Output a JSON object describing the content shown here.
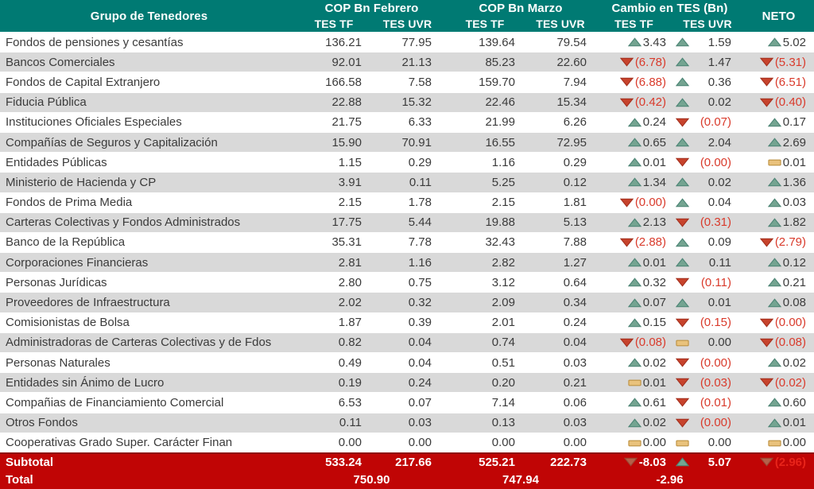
{
  "colors": {
    "header_bg": "#007a73",
    "total_bg": "#c00505",
    "stripe": "#d9d9d9",
    "negative": "#d93a2b",
    "up_fill": "#74a491",
    "down_fill": "#c7432c",
    "flat_fill": "#e9c27c"
  },
  "chart_data": {
    "type": "table",
    "header": {
      "group_col": "Grupo de Tenedores",
      "feb_group": "COP Bn Febrero",
      "mar_group": "COP Bn Marzo",
      "cambio_group": "Cambio en TES (Bn)",
      "neto": "NETO",
      "sub_tf": "TES TF",
      "sub_uvr": "TES UVR"
    },
    "rows": [
      {
        "name": "Fondos de pensiones y cesantías",
        "feb_tf": "136.21",
        "feb_uvr": "77.95",
        "mar_tf": "139.64",
        "mar_uvr": "79.54",
        "chg_tf": {
          "dir": "up",
          "val": "3.43"
        },
        "chg_uvr": {
          "dir": "up",
          "val": "1.59"
        },
        "neto": {
          "dir": "up",
          "val": "5.02"
        }
      },
      {
        "name": "Bancos Comerciales",
        "feb_tf": "92.01",
        "feb_uvr": "21.13",
        "mar_tf": "85.23",
        "mar_uvr": "22.60",
        "chg_tf": {
          "dir": "down",
          "val": "(6.78)"
        },
        "chg_uvr": {
          "dir": "up",
          "val": "1.47"
        },
        "neto": {
          "dir": "down",
          "val": "(5.31)"
        }
      },
      {
        "name": "Fondos de Capital Extranjero",
        "feb_tf": "166.58",
        "feb_uvr": "7.58",
        "mar_tf": "159.70",
        "mar_uvr": "7.94",
        "chg_tf": {
          "dir": "down",
          "val": "(6.88)"
        },
        "chg_uvr": {
          "dir": "up",
          "val": "0.36"
        },
        "neto": {
          "dir": "down",
          "val": "(6.51)"
        }
      },
      {
        "name": "Fiducia Pública",
        "feb_tf": "22.88",
        "feb_uvr": "15.32",
        "mar_tf": "22.46",
        "mar_uvr": "15.34",
        "chg_tf": {
          "dir": "down",
          "val": "(0.42)"
        },
        "chg_uvr": {
          "dir": "up",
          "val": "0.02"
        },
        "neto": {
          "dir": "down",
          "val": "(0.40)"
        }
      },
      {
        "name": "Instituciones Oficiales Especiales",
        "feb_tf": "21.75",
        "feb_uvr": "6.33",
        "mar_tf": "21.99",
        "mar_uvr": "6.26",
        "chg_tf": {
          "dir": "up",
          "val": "0.24"
        },
        "chg_uvr": {
          "dir": "down",
          "val": "(0.07)"
        },
        "neto": {
          "dir": "up",
          "val": "0.17"
        }
      },
      {
        "name": "Compañías de Seguros y Capitalización",
        "feb_tf": "15.90",
        "feb_uvr": "70.91",
        "mar_tf": "16.55",
        "mar_uvr": "72.95",
        "chg_tf": {
          "dir": "up",
          "val": "0.65"
        },
        "chg_uvr": {
          "dir": "up",
          "val": "2.04"
        },
        "neto": {
          "dir": "up",
          "val": "2.69"
        }
      },
      {
        "name": "Entidades Públicas",
        "feb_tf": "1.15",
        "feb_uvr": "0.29",
        "mar_tf": "1.16",
        "mar_uvr": "0.29",
        "chg_tf": {
          "dir": "up",
          "val": "0.01"
        },
        "chg_uvr": {
          "dir": "down",
          "val": "(0.00)"
        },
        "neto": {
          "dir": "flat",
          "val": "0.01"
        }
      },
      {
        "name": "Ministerio de Hacienda y CP",
        "feb_tf": "3.91",
        "feb_uvr": "0.11",
        "mar_tf": "5.25",
        "mar_uvr": "0.12",
        "chg_tf": {
          "dir": "up",
          "val": "1.34"
        },
        "chg_uvr": {
          "dir": "up",
          "val": "0.02"
        },
        "neto": {
          "dir": "up",
          "val": "1.36"
        }
      },
      {
        "name": "Fondos de Prima Media",
        "feb_tf": "2.15",
        "feb_uvr": "1.78",
        "mar_tf": "2.15",
        "mar_uvr": "1.81",
        "chg_tf": {
          "dir": "down",
          "val": "(0.00)"
        },
        "chg_uvr": {
          "dir": "up",
          "val": "0.04"
        },
        "neto": {
          "dir": "up",
          "val": "0.03"
        }
      },
      {
        "name": "Carteras Colectivas y Fondos Administrados",
        "feb_tf": "17.75",
        "feb_uvr": "5.44",
        "mar_tf": "19.88",
        "mar_uvr": "5.13",
        "chg_tf": {
          "dir": "up",
          "val": "2.13"
        },
        "chg_uvr": {
          "dir": "down",
          "val": "(0.31)"
        },
        "neto": {
          "dir": "up",
          "val": "1.82"
        }
      },
      {
        "name": "Banco de la República",
        "feb_tf": "35.31",
        "feb_uvr": "7.78",
        "mar_tf": "32.43",
        "mar_uvr": "7.88",
        "chg_tf": {
          "dir": "down",
          "val": "(2.88)"
        },
        "chg_uvr": {
          "dir": "up",
          "val": "0.09"
        },
        "neto": {
          "dir": "down",
          "val": "(2.79)"
        }
      },
      {
        "name": "Corporaciones Financieras",
        "feb_tf": "2.81",
        "feb_uvr": "1.16",
        "mar_tf": "2.82",
        "mar_uvr": "1.27",
        "chg_tf": {
          "dir": "up",
          "val": "0.01"
        },
        "chg_uvr": {
          "dir": "up",
          "val": "0.11"
        },
        "neto": {
          "dir": "up",
          "val": "0.12"
        }
      },
      {
        "name": "Personas Jurídicas",
        "feb_tf": "2.80",
        "feb_uvr": "0.75",
        "mar_tf": "3.12",
        "mar_uvr": "0.64",
        "chg_tf": {
          "dir": "up",
          "val": "0.32"
        },
        "chg_uvr": {
          "dir": "down",
          "val": "(0.11)"
        },
        "neto": {
          "dir": "up",
          "val": "0.21"
        }
      },
      {
        "name": "Proveedores de Infraestructura",
        "feb_tf": "2.02",
        "feb_uvr": "0.32",
        "mar_tf": "2.09",
        "mar_uvr": "0.34",
        "chg_tf": {
          "dir": "up",
          "val": "0.07"
        },
        "chg_uvr": {
          "dir": "up",
          "val": "0.01"
        },
        "neto": {
          "dir": "up",
          "val": "0.08"
        }
      },
      {
        "name": "Comisionistas de Bolsa",
        "feb_tf": "1.87",
        "feb_uvr": "0.39",
        "mar_tf": "2.01",
        "mar_uvr": "0.24",
        "chg_tf": {
          "dir": "up",
          "val": "0.15"
        },
        "chg_uvr": {
          "dir": "down",
          "val": "(0.15)"
        },
        "neto": {
          "dir": "down",
          "val": "(0.00)"
        }
      },
      {
        "name": "Administradoras de Carteras Colectivas y de Fdos",
        "feb_tf": "0.82",
        "feb_uvr": "0.04",
        "mar_tf": "0.74",
        "mar_uvr": "0.04",
        "chg_tf": {
          "dir": "down",
          "val": "(0.08)"
        },
        "chg_uvr": {
          "dir": "flat",
          "val": "0.00"
        },
        "neto": {
          "dir": "down",
          "val": "(0.08)"
        }
      },
      {
        "name": "Personas Naturales",
        "feb_tf": "0.49",
        "feb_uvr": "0.04",
        "mar_tf": "0.51",
        "mar_uvr": "0.03",
        "chg_tf": {
          "dir": "up",
          "val": "0.02"
        },
        "chg_uvr": {
          "dir": "down",
          "val": "(0.00)"
        },
        "neto": {
          "dir": "up",
          "val": "0.02"
        }
      },
      {
        "name": "Entidades sin Ánimo de Lucro",
        "feb_tf": "0.19",
        "feb_uvr": "0.24",
        "mar_tf": "0.20",
        "mar_uvr": "0.21",
        "chg_tf": {
          "dir": "flat",
          "val": "0.01"
        },
        "chg_uvr": {
          "dir": "down",
          "val": "(0.03)"
        },
        "neto": {
          "dir": "down",
          "val": "(0.02)"
        }
      },
      {
        "name": "Compañias de Financiamiento Comercial",
        "feb_tf": "6.53",
        "feb_uvr": "0.07",
        "mar_tf": "7.14",
        "mar_uvr": "0.06",
        "chg_tf": {
          "dir": "up",
          "val": "0.61"
        },
        "chg_uvr": {
          "dir": "down",
          "val": "(0.01)"
        },
        "neto": {
          "dir": "up",
          "val": "0.60"
        }
      },
      {
        "name": "Otros Fondos",
        "feb_tf": "0.11",
        "feb_uvr": "0.03",
        "mar_tf": "0.13",
        "mar_uvr": "0.03",
        "chg_tf": {
          "dir": "up",
          "val": "0.02"
        },
        "chg_uvr": {
          "dir": "down",
          "val": "(0.00)"
        },
        "neto": {
          "dir": "up",
          "val": "0.01"
        }
      },
      {
        "name": "Cooperativas Grado Super. Carácter Finan",
        "feb_tf": "0.00",
        "feb_uvr": "0.00",
        "mar_tf": "0.00",
        "mar_uvr": "0.00",
        "chg_tf": {
          "dir": "flat",
          "val": "0.00"
        },
        "chg_uvr": {
          "dir": "flat",
          "val": "0.00"
        },
        "neto": {
          "dir": "flat",
          "val": "0.00"
        }
      }
    ],
    "subtotal": {
      "label": "Subtotal",
      "feb_tf": "533.24",
      "feb_uvr": "217.66",
      "mar_tf": "525.21",
      "mar_uvr": "222.73",
      "chg_tf": {
        "dir": "down",
        "val": "-8.03"
      },
      "chg_uvr": {
        "dir": "up",
        "val": "5.07"
      },
      "neto": {
        "dir": "down",
        "val": "(2.96)"
      }
    },
    "total": {
      "label": "Total",
      "feb": "750.90",
      "mar": "747.94",
      "cambio": "-2.96"
    }
  }
}
